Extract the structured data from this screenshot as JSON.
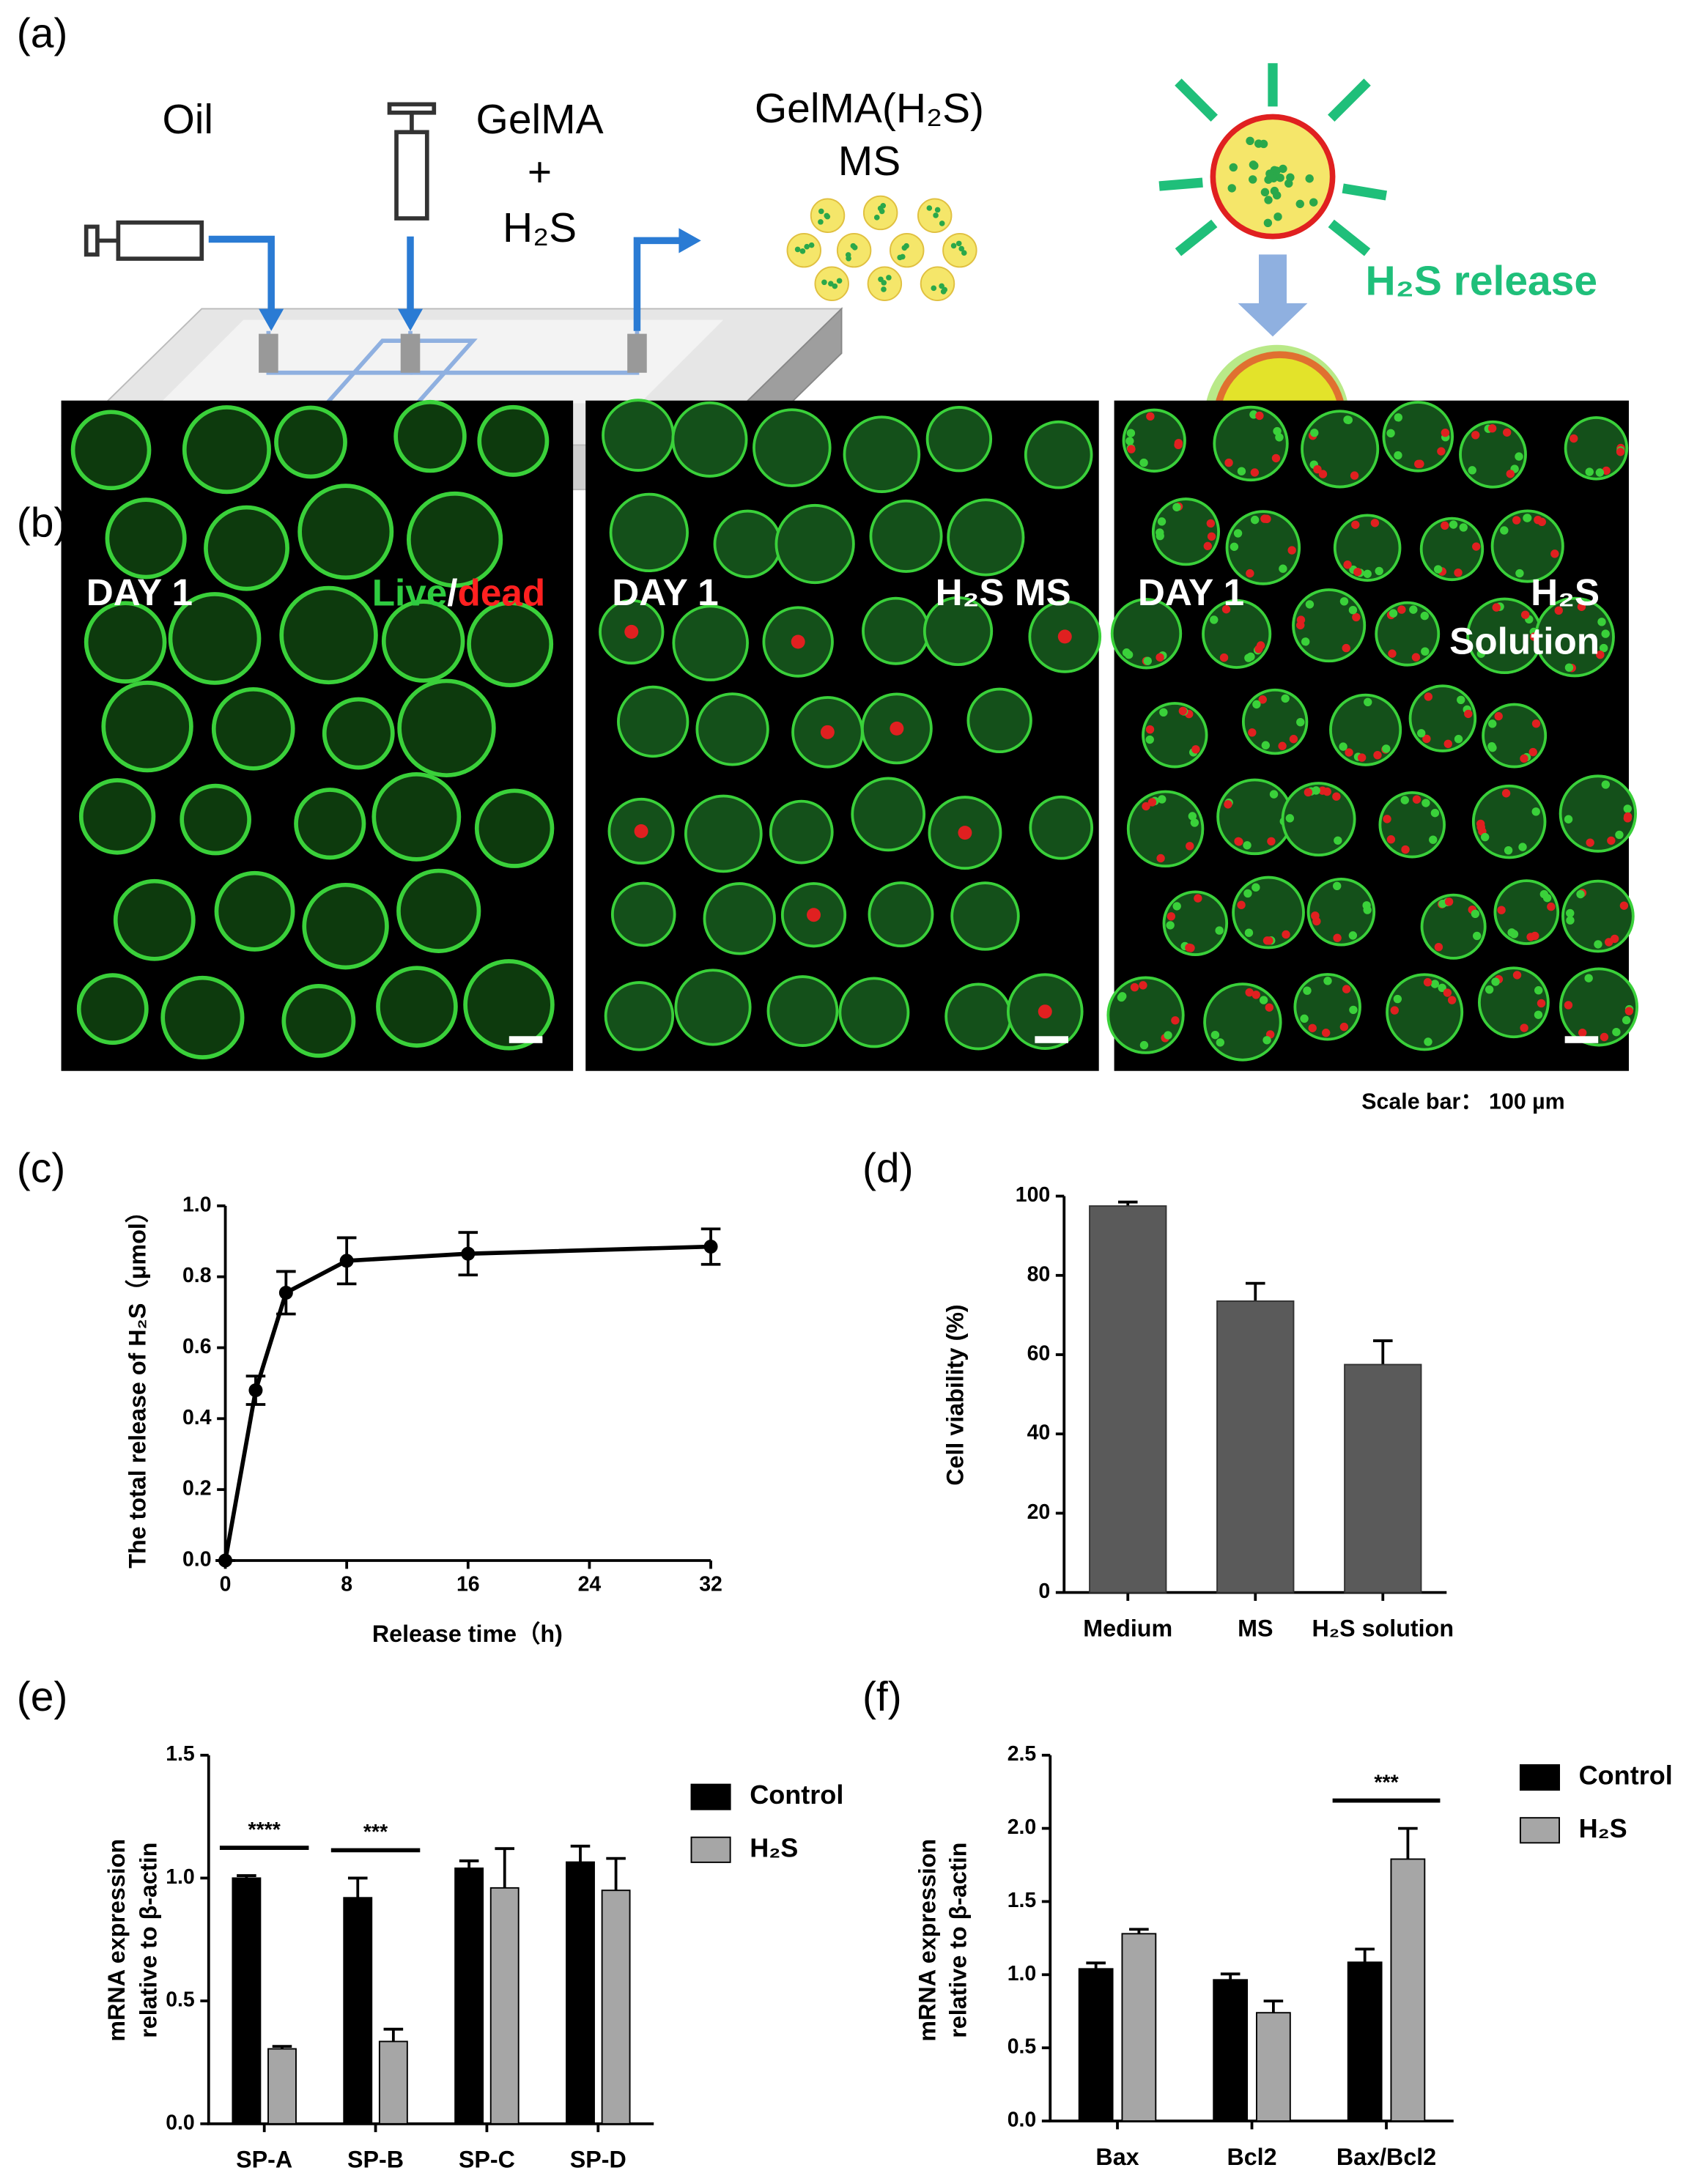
{
  "panel_labels": [
    "(a)",
    "(b)",
    "(c)",
    "(d)",
    "(e)",
    "(f)"
  ],
  "diagram": {
    "oil": "Oil",
    "gelma": "GelMA",
    "plus": "+",
    "h2s": "H₂S",
    "product": "GelMA(H₂S)",
    "product_sub": "MS",
    "release": "H₂S release"
  },
  "micrographs": [
    {
      "day": "DAY 1",
      "label_parts": [
        "Live",
        "/",
        "dead"
      ]
    },
    {
      "day": "DAY 1",
      "label": "H₂S MS"
    },
    {
      "day": "DAY 1",
      "label_lines": [
        "H₂S",
        "Solution"
      ]
    }
  ],
  "scale_bar": "Scale bar：  100 µm",
  "chart_data": [
    {
      "type": "line",
      "x": [
        0,
        2,
        4,
        8,
        16,
        32
      ],
      "y": [
        0,
        0.48,
        0.755,
        0.845,
        0.865,
        0.885
      ],
      "errors": [
        0,
        0.04,
        0.06,
        0.065,
        0.06,
        0.05
      ],
      "xlim": [
        0,
        32
      ],
      "xticks": [
        0,
        8,
        16,
        24,
        32
      ],
      "ylim": [
        0,
        1
      ],
      "yticks": [
        {
          "value": 0,
          "label": "0.0"
        },
        0.2,
        0.4,
        0.6,
        0.8,
        {
          "value": 1,
          "label": "1.0"
        }
      ],
      "xlabel": "Release time（h)",
      "ylabel": "The total release of H₂S（μmol）",
      "color": "#000000"
    },
    {
      "type": "bar",
      "categories": [
        "Medium",
        "MS",
        "H₂S solution"
      ],
      "values": [
        97.5,
        73.5,
        57.5
      ],
      "errors": [
        1,
        4.5,
        6
      ],
      "ylim": [
        0,
        100
      ],
      "yticks": [
        0,
        20,
        40,
        60,
        80,
        100
      ],
      "ylabel": "Cell viability (%)",
      "color": "#5a5a5a"
    },
    {
      "type": "grouped_bar",
      "categories": [
        "SP-A",
        "SP-B",
        "SP-C",
        "SP-D"
      ],
      "series": [
        {
          "name": "Control",
          "color": "#000000",
          "values": [
            1.0,
            0.92,
            1.04,
            1.065
          ],
          "errors": [
            0.01,
            0.08,
            0.03,
            0.065
          ]
        },
        {
          "name": "H₂S",
          "color": "#a6a6a6",
          "values": [
            0.305,
            0.335,
            0.96,
            0.95
          ],
          "errors": [
            0.01,
            0.05,
            0.16,
            0.13
          ]
        }
      ],
      "significance": [
        "****",
        "***",
        null,
        null
      ],
      "ylim": [
        0,
        1.5
      ],
      "yticks": [
        {
          "value": 0,
          "label": "0.0"
        },
        0.5,
        {
          "value": 1,
          "label": "1.0"
        },
        1.5
      ],
      "ylabel_lines": [
        "mRNA expression",
        "relative to β-actin"
      ]
    },
    {
      "type": "grouped_bar",
      "categories": [
        "Bax",
        "Bcl2",
        "Bax/Bcl2"
      ],
      "series": [
        {
          "name": "Control",
          "color": "#000000",
          "values": [
            1.04,
            0.965,
            1.085
          ],
          "errors": [
            0.04,
            0.04,
            0.09
          ]
        },
        {
          "name": "H₂S",
          "color": "#a6a6a6",
          "values": [
            1.28,
            0.74,
            1.79
          ],
          "errors": [
            0.03,
            0.08,
            0.21
          ]
        }
      ],
      "significance": [
        null,
        null,
        "***"
      ],
      "ylim": [
        0,
        2.5
      ],
      "yticks": [
        {
          "value": 0,
          "label": "0.0"
        },
        0.5,
        {
          "value": 1,
          "label": "1.0"
        },
        1.5,
        {
          "value": 2,
          "label": "2.0"
        },
        2.5
      ],
      "ylabel_lines": [
        "mRNA expression",
        "relative to β-actin"
      ]
    }
  ]
}
